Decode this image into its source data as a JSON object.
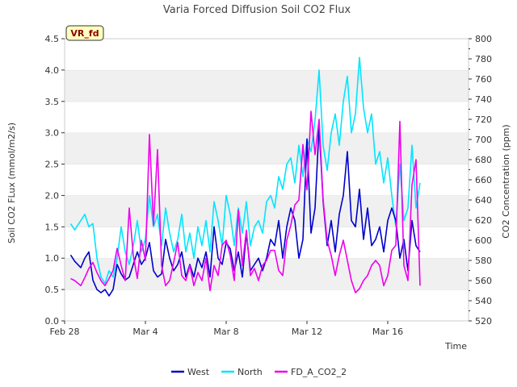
{
  "chart_data": {
    "type": "line",
    "title": "Varia Forced Diffusion Soil CO2 Flux",
    "badge": "VR_fd",
    "xlabel": "Time",
    "ylabel": "Soil CO2 FLux (mmol/m2/s)",
    "y2label": "CO2 Concentration (ppm)",
    "xlim": [
      0,
      20
    ],
    "ylim": [
      0,
      4.5
    ],
    "y2lim": [
      520,
      800
    ],
    "x_ticks": [
      {
        "value": 0,
        "label": "Feb 28"
      },
      {
        "value": 4,
        "label": "Mar 4"
      },
      {
        "value": 8,
        "label": "Mar 8"
      },
      {
        "value": 12,
        "label": "Mar 12"
      },
      {
        "value": 16,
        "label": "Mar 16"
      }
    ],
    "y_ticks": [
      "0.0",
      "0.5",
      "1.0",
      "1.5",
      "2.0",
      "2.5",
      "3.0",
      "3.5",
      "4.0",
      "4.5"
    ],
    "y2_ticks": [
      "520",
      "540",
      "560",
      "580",
      "600",
      "620",
      "640",
      "660",
      "680",
      "700",
      "720",
      "740",
      "760",
      "780",
      "800"
    ],
    "grid": "horizontal, alternating gray bands",
    "legend_position": "bottom-center",
    "series": [
      {
        "name": "West",
        "axis": "left",
        "color": "#0000cc",
        "x": [
          0.3,
          0.5,
          0.8,
          1.0,
          1.2,
          1.4,
          1.6,
          1.8,
          2.0,
          2.2,
          2.4,
          2.6,
          2.8,
          3.0,
          3.2,
          3.4,
          3.6,
          3.8,
          4.0,
          4.2,
          4.4,
          4.6,
          4.8,
          5.0,
          5.2,
          5.4,
          5.6,
          5.8,
          6.0,
          6.2,
          6.4,
          6.6,
          6.8,
          7.0,
          7.2,
          7.4,
          7.6,
          7.8,
          8.0,
          8.2,
          8.4,
          8.6,
          8.8,
          9.0,
          9.2,
          9.4,
          9.6,
          9.8,
          10.0,
          10.2,
          10.4,
          10.6,
          10.8,
          11.0,
          11.2,
          11.4,
          11.6,
          11.8,
          12.0,
          12.2,
          12.4,
          12.6,
          12.8,
          13.0,
          13.2,
          13.4,
          13.6,
          13.8,
          14.0,
          14.2,
          14.4,
          14.6,
          14.8,
          15.0,
          15.2,
          15.4,
          15.6,
          15.8,
          16.0,
          16.2,
          16.4,
          16.6,
          16.8,
          17.0,
          17.2,
          17.4,
          17.6
        ],
        "y": [
          1.05,
          0.95,
          0.85,
          1.0,
          1.1,
          0.65,
          0.5,
          0.45,
          0.5,
          0.4,
          0.5,
          0.9,
          0.75,
          0.65,
          0.7,
          0.9,
          1.1,
          0.9,
          1.0,
          1.25,
          0.8,
          0.7,
          0.75,
          1.3,
          1.0,
          0.8,
          0.9,
          1.1,
          0.7,
          0.9,
          0.7,
          1.0,
          0.85,
          1.1,
          0.7,
          1.5,
          1.0,
          0.9,
          1.25,
          1.15,
          0.8,
          1.1,
          0.7,
          1.4,
          0.8,
          0.9,
          1.0,
          0.8,
          1.0,
          1.3,
          1.2,
          1.6,
          1.0,
          1.5,
          1.8,
          1.6,
          1.0,
          1.3,
          2.9,
          1.4,
          1.8,
          3.1,
          1.9,
          1.2,
          1.6,
          1.1,
          1.7,
          2.0,
          2.7,
          1.6,
          1.5,
          2.1,
          1.3,
          1.8,
          1.2,
          1.3,
          1.5,
          1.1,
          1.6,
          1.8,
          1.6,
          1.0,
          1.3,
          0.8,
          1.6,
          1.2,
          1.1
        ]
      },
      {
        "name": "North",
        "axis": "left",
        "color": "#00e5ff",
        "x": [
          0.3,
          0.5,
          0.8,
          1.0,
          1.2,
          1.4,
          1.6,
          1.8,
          2.0,
          2.2,
          2.4,
          2.6,
          2.8,
          3.0,
          3.2,
          3.4,
          3.6,
          3.8,
          4.0,
          4.2,
          4.4,
          4.6,
          4.8,
          5.0,
          5.2,
          5.4,
          5.6,
          5.8,
          6.0,
          6.2,
          6.4,
          6.6,
          6.8,
          7.0,
          7.2,
          7.4,
          7.6,
          7.8,
          8.0,
          8.2,
          8.4,
          8.6,
          8.8,
          9.0,
          9.2,
          9.4,
          9.6,
          9.8,
          10.0,
          10.2,
          10.4,
          10.6,
          10.8,
          11.0,
          11.2,
          11.4,
          11.6,
          11.8,
          12.0,
          12.2,
          12.4,
          12.6,
          12.8,
          13.0,
          13.2,
          13.4,
          13.6,
          13.8,
          14.0,
          14.2,
          14.4,
          14.6,
          14.8,
          15.0,
          15.2,
          15.4,
          15.6,
          15.8,
          16.0,
          16.2,
          16.4,
          16.6,
          16.8,
          17.0,
          17.2,
          17.4,
          17.6
        ],
        "y": [
          1.55,
          1.45,
          1.6,
          1.7,
          1.5,
          1.55,
          1.0,
          0.7,
          0.6,
          0.8,
          0.7,
          1.0,
          1.5,
          1.1,
          0.9,
          1.2,
          1.6,
          1.1,
          1.3,
          2.0,
          1.5,
          1.7,
          1.2,
          1.8,
          1.4,
          1.1,
          1.3,
          1.7,
          1.1,
          1.4,
          1.0,
          1.5,
          1.2,
          1.6,
          1.1,
          1.9,
          1.6,
          1.2,
          2.0,
          1.7,
          1.2,
          1.8,
          1.4,
          1.9,
          1.2,
          1.5,
          1.6,
          1.4,
          1.9,
          2.0,
          1.8,
          2.3,
          2.1,
          2.5,
          2.6,
          2.2,
          2.8,
          2.3,
          2.9,
          2.7,
          3.2,
          4.0,
          2.8,
          2.4,
          3.0,
          3.3,
          2.8,
          3.5,
          3.9,
          3.0,
          3.3,
          4.2,
          3.4,
          3.0,
          3.3,
          2.5,
          2.7,
          2.2,
          2.6,
          2.0,
          1.5,
          2.5,
          1.6,
          1.8,
          2.8,
          1.8,
          2.2
        ]
      },
      {
        "name": "FD_A_CO2_2",
        "axis": "right",
        "color": "#ee00ee",
        "x": [
          0.3,
          0.5,
          0.8,
          1.0,
          1.2,
          1.4,
          1.6,
          1.8,
          2.0,
          2.2,
          2.4,
          2.6,
          2.8,
          3.0,
          3.2,
          3.4,
          3.6,
          3.8,
          4.0,
          4.2,
          4.4,
          4.6,
          4.8,
          5.0,
          5.2,
          5.4,
          5.6,
          5.8,
          6.0,
          6.2,
          6.4,
          6.6,
          6.8,
          7.0,
          7.2,
          7.4,
          7.6,
          7.8,
          8.0,
          8.2,
          8.4,
          8.6,
          8.8,
          9.0,
          9.2,
          9.4,
          9.6,
          9.8,
          10.0,
          10.2,
          10.4,
          10.6,
          10.8,
          11.0,
          11.2,
          11.4,
          11.6,
          11.8,
          12.0,
          12.2,
          12.4,
          12.6,
          12.8,
          13.0,
          13.2,
          13.4,
          13.6,
          13.8,
          14.0,
          14.2,
          14.4,
          14.6,
          14.8,
          15.0,
          15.2,
          15.4,
          15.6,
          15.8,
          16.0,
          16.2,
          16.4,
          16.6,
          16.8,
          17.0,
          17.2,
          17.4,
          17.6
        ],
        "y": [
          562,
          560,
          555,
          563,
          572,
          578,
          568,
          560,
          555,
          562,
          570,
          592,
          575,
          560,
          632,
          585,
          562,
          600,
          580,
          705,
          615,
          690,
          575,
          555,
          560,
          578,
          598,
          565,
          560,
          575,
          555,
          568,
          560,
          582,
          550,
          575,
          565,
          595,
          600,
          585,
          560,
          630,
          575,
          610,
          565,
          572,
          560,
          575,
          580,
          590,
          590,
          570,
          565,
          600,
          615,
          635,
          640,
          695,
          650,
          728,
          685,
          720,
          640,
          600,
          585,
          565,
          585,
          600,
          580,
          560,
          548,
          552,
          560,
          565,
          575,
          580,
          575,
          555,
          565,
          590,
          595,
          718,
          575,
          560,
          655,
          680,
          555
        ]
      }
    ]
  }
}
